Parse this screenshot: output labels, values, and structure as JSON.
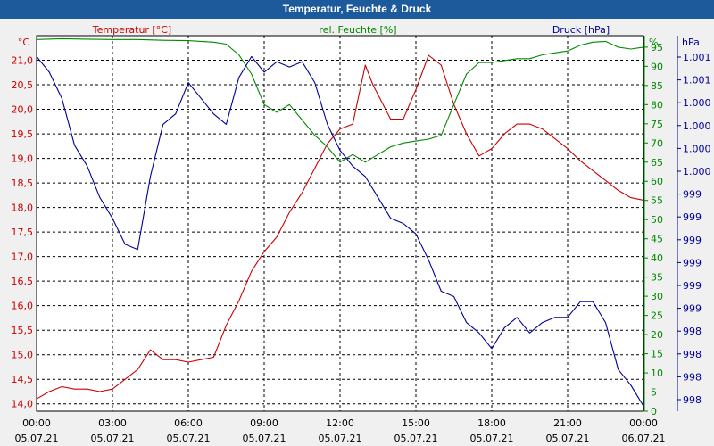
{
  "window": {
    "title": "Temperatur, Feuchte & Druck"
  },
  "colors": {
    "temperature": "#cc0000",
    "humidity": "#008800",
    "pressure": "#000099",
    "grid": "#000000",
    "plot_bg": "#ffffff"
  },
  "chart_data": {
    "type": "line",
    "title": "Temperatur, Feuchte & Druck",
    "x_unit": "hours since 05.07.21 00:00",
    "x_range": [
      0,
      24
    ],
    "x_ticks": [
      {
        "time": "00:00",
        "date": "05.07.21"
      },
      {
        "time": "03:00",
        "date": "05.07.21"
      },
      {
        "time": "06:00",
        "date": "05.07.21"
      },
      {
        "time": "09:00",
        "date": "05.07.21"
      },
      {
        "time": "12:00",
        "date": "05.07.21"
      },
      {
        "time": "15:00",
        "date": "05.07.21"
      },
      {
        "time": "18:00",
        "date": "05.07.21"
      },
      {
        "time": "21:00",
        "date": "05.07.21"
      },
      {
        "time": "00:00",
        "date": "06.07.21"
      }
    ],
    "axes": {
      "temperature": {
        "label": "Temperatur [°C]",
        "unit": "°C",
        "range": [
          13.85,
          21.5
        ],
        "ticks": [
          "14,0",
          "14,5",
          "15,0",
          "15,5",
          "16,0",
          "16,5",
          "17,0",
          "17,5",
          "18,0",
          "18,5",
          "19,0",
          "19,5",
          "20,0",
          "20,5",
          "21,0"
        ]
      },
      "humidity": {
        "label": "rel. Feuchte [%]",
        "unit": "%",
        "range": [
          0,
          98
        ],
        "ticks": [
          "0",
          "5",
          "10",
          "15",
          "20",
          "25",
          "30",
          "35",
          "40",
          "45",
          "50",
          "55",
          "60",
          "65",
          "70",
          "75",
          "80",
          "85",
          "90",
          "95"
        ]
      },
      "pressure": {
        "label": "Druck [hPa]",
        "unit": "hPa",
        "range": [
          997.7,
          1001.3
        ],
        "ticks": [
          "998",
          "998",
          "998",
          "998",
          "999",
          "999",
          "999",
          "999",
          "999",
          "999",
          "1.000",
          "1.000",
          "1.000",
          "1.000",
          "1.001",
          "1.001"
        ]
      }
    },
    "series": [
      {
        "name": "Temperatur [°C]",
        "axis": "temperature",
        "points": [
          [
            0,
            14.1
          ],
          [
            0.5,
            14.25
          ],
          [
            1,
            14.35
          ],
          [
            1.5,
            14.3
          ],
          [
            2,
            14.3
          ],
          [
            2.5,
            14.25
          ],
          [
            3,
            14.3
          ],
          [
            3.5,
            14.5
          ],
          [
            4,
            14.7
          ],
          [
            4.5,
            15.1
          ],
          [
            5,
            14.9
          ],
          [
            5.5,
            14.9
          ],
          [
            6,
            14.85
          ],
          [
            6.5,
            14.9
          ],
          [
            7,
            14.95
          ],
          [
            7.5,
            15.6
          ],
          [
            8,
            16.1
          ],
          [
            8.5,
            16.7
          ],
          [
            9,
            17.1
          ],
          [
            9.5,
            17.4
          ],
          [
            10,
            17.9
          ],
          [
            10.5,
            18.3
          ],
          [
            11,
            18.8
          ],
          [
            11.5,
            19.3
          ],
          [
            12,
            19.6
          ],
          [
            12.5,
            19.7
          ],
          [
            13,
            20.9
          ],
          [
            13.3,
            20.5
          ],
          [
            13.6,
            20.2
          ],
          [
            14,
            19.8
          ],
          [
            14.5,
            19.8
          ],
          [
            15,
            20.4
          ],
          [
            15.5,
            21.1
          ],
          [
            16,
            20.9
          ],
          [
            16.5,
            20.1
          ],
          [
            17,
            19.5
          ],
          [
            17.5,
            19.05
          ],
          [
            18,
            19.2
          ],
          [
            18.5,
            19.5
          ],
          [
            19,
            19.7
          ],
          [
            19.5,
            19.7
          ],
          [
            20,
            19.6
          ],
          [
            20.5,
            19.4
          ],
          [
            21,
            19.2
          ],
          [
            21.5,
            18.95
          ],
          [
            22,
            18.75
          ],
          [
            22.5,
            18.55
          ],
          [
            23,
            18.35
          ],
          [
            23.5,
            18.2
          ],
          [
            24,
            18.15
          ]
        ]
      },
      {
        "name": "rel. Feuchte [%]",
        "axis": "humidity",
        "points": [
          [
            0,
            97
          ],
          [
            1,
            97.2
          ],
          [
            2,
            97.1
          ],
          [
            3,
            97
          ],
          [
            4,
            97
          ],
          [
            5,
            96.8
          ],
          [
            6,
            96.7
          ],
          [
            7,
            96.3
          ],
          [
            7.5,
            95.8
          ],
          [
            8,
            93
          ],
          [
            8.5,
            88
          ],
          [
            9,
            80
          ],
          [
            9.5,
            78
          ],
          [
            10,
            80
          ],
          [
            10.5,
            76
          ],
          [
            11,
            72
          ],
          [
            11.5,
            69
          ],
          [
            12,
            65
          ],
          [
            12.5,
            67
          ],
          [
            13,
            65
          ],
          [
            13.5,
            67
          ],
          [
            14,
            69
          ],
          [
            14.5,
            70
          ],
          [
            15,
            70.5
          ],
          [
            15.5,
            71
          ],
          [
            16,
            72
          ],
          [
            16.5,
            80
          ],
          [
            17,
            88
          ],
          [
            17.5,
            91
          ],
          [
            18,
            91
          ],
          [
            18.5,
            91.5
          ],
          [
            19,
            92
          ],
          [
            19.5,
            92
          ],
          [
            20,
            93
          ],
          [
            20.5,
            93.5
          ],
          [
            21,
            94
          ],
          [
            21.5,
            95.5
          ],
          [
            22,
            96.3
          ],
          [
            22.5,
            96.5
          ],
          [
            23,
            95
          ],
          [
            23.5,
            94.5
          ],
          [
            24,
            95
          ]
        ]
      },
      {
        "name": "Druck [hPa]",
        "axis": "pressure",
        "points": [
          [
            0,
            1001.1
          ],
          [
            0.5,
            1000.95
          ],
          [
            1,
            1000.7
          ],
          [
            1.5,
            1000.25
          ],
          [
            2,
            1000.05
          ],
          [
            2.5,
            999.75
          ],
          [
            3,
            999.55
          ],
          [
            3.5,
            999.3
          ],
          [
            4,
            999.25
          ],
          [
            4.5,
            999.95
          ],
          [
            5,
            1000.45
          ],
          [
            5.5,
            1000.55
          ],
          [
            6,
            1000.85
          ],
          [
            6.5,
            1000.7
          ],
          [
            7,
            1000.55
          ],
          [
            7.5,
            1000.45
          ],
          [
            8,
            1000.9
          ],
          [
            8.5,
            1001.1
          ],
          [
            9,
            1000.95
          ],
          [
            9.5,
            1001.05
          ],
          [
            10,
            1001.0
          ],
          [
            10.5,
            1001.05
          ],
          [
            11,
            1000.85
          ],
          [
            11.5,
            1000.45
          ],
          [
            12,
            1000.2
          ],
          [
            12.5,
            1000.05
          ],
          [
            13,
            999.95
          ],
          [
            13.5,
            999.75
          ],
          [
            14,
            999.55
          ],
          [
            14.5,
            999.5
          ],
          [
            15,
            999.4
          ],
          [
            15.5,
            999.15
          ],
          [
            16,
            998.85
          ],
          [
            16.5,
            998.8
          ],
          [
            17,
            998.55
          ],
          [
            17.5,
            998.45
          ],
          [
            18,
            998.3
          ],
          [
            18.5,
            998.5
          ],
          [
            19,
            998.6
          ],
          [
            19.5,
            998.45
          ],
          [
            20,
            998.55
          ],
          [
            20.5,
            998.6
          ],
          [
            21,
            998.6
          ],
          [
            21.5,
            998.75
          ],
          [
            22,
            998.75
          ],
          [
            22.5,
            998.55
          ],
          [
            23,
            998.1
          ],
          [
            23.5,
            997.95
          ],
          [
            24,
            997.75
          ]
        ]
      }
    ]
  }
}
